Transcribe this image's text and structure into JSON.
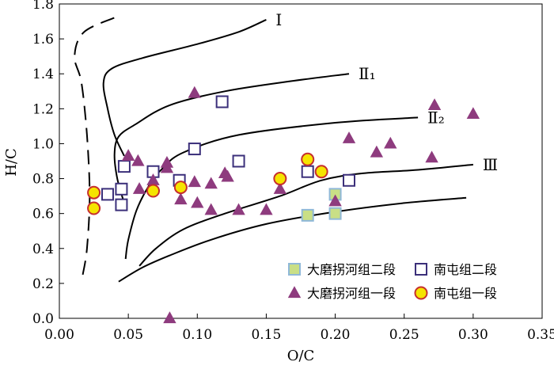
{
  "chart_data": {
    "type": "scatter",
    "xlabel": "O/C",
    "ylabel": "H/C",
    "xlim": [
      0,
      0.35
    ],
    "ylim": [
      0,
      1.8
    ],
    "x_ticks": [
      "0.00",
      "0.05",
      "0.10",
      "0.15",
      "0.20",
      "0.25",
      "0.30",
      "0.35"
    ],
    "y_ticks": [
      "0.0",
      "0.2",
      "0.4",
      "0.6",
      "0.8",
      "1.0",
      "1.2",
      "1.4",
      "1.6",
      "1.8"
    ],
    "x_tick_values": [
      0,
      0.05,
      0.1,
      0.15,
      0.2,
      0.25,
      0.3,
      0.35
    ],
    "y_tick_values": [
      0,
      0.2,
      0.4,
      0.6,
      0.8,
      1.0,
      1.2,
      1.4,
      1.6,
      1.8
    ],
    "grid": false,
    "legend_position": "bottom-right",
    "curves": [
      {
        "label": "Ⅰ",
        "points": [
          [
            0.047,
            0.93
          ],
          [
            0.04,
            1.05
          ],
          [
            0.035,
            1.2
          ],
          [
            0.032,
            1.35
          ],
          [
            0.038,
            1.43
          ],
          [
            0.06,
            1.49
          ],
          [
            0.1,
            1.57
          ],
          [
            0.13,
            1.64
          ],
          [
            0.15,
            1.71
          ]
        ]
      },
      {
        "label": "Ⅱ₁",
        "points": [
          [
            0.047,
            0.66
          ],
          [
            0.042,
            0.8
          ],
          [
            0.04,
            0.94
          ],
          [
            0.043,
            1.04
          ],
          [
            0.055,
            1.11
          ],
          [
            0.08,
            1.22
          ],
          [
            0.12,
            1.3
          ],
          [
            0.17,
            1.36
          ],
          [
            0.21,
            1.4
          ]
        ]
      },
      {
        "label": "Ⅱ₂",
        "points": [
          [
            0.048,
            0.34
          ],
          [
            0.05,
            0.45
          ],
          [
            0.056,
            0.62
          ],
          [
            0.065,
            0.76
          ],
          [
            0.075,
            0.86
          ],
          [
            0.09,
            0.95
          ],
          [
            0.13,
            1.05
          ],
          [
            0.2,
            1.12
          ],
          [
            0.26,
            1.15
          ]
        ]
      },
      {
        "label": "Ⅲ",
        "points": [
          [
            0.058,
            0.3
          ],
          [
            0.07,
            0.4
          ],
          [
            0.09,
            0.51
          ],
          [
            0.12,
            0.6
          ],
          [
            0.16,
            0.7
          ],
          [
            0.19,
            0.79
          ],
          [
            0.22,
            0.83
          ],
          [
            0.26,
            0.85
          ],
          [
            0.3,
            0.88
          ]
        ]
      },
      {
        "label": "",
        "points": [
          [
            0.043,
            0.21
          ],
          [
            0.06,
            0.29
          ],
          [
            0.08,
            0.36
          ],
          [
            0.11,
            0.45
          ],
          [
            0.15,
            0.54
          ],
          [
            0.2,
            0.61
          ],
          [
            0.25,
            0.66
          ],
          [
            0.295,
            0.69
          ]
        ]
      }
    ],
    "dashed_curve": [
      [
        0.017,
        0.25
      ],
      [
        0.02,
        0.4
      ],
      [
        0.022,
        0.7
      ],
      [
        0.02,
        1.05
      ],
      [
        0.016,
        1.35
      ],
      [
        0.011,
        1.5
      ],
      [
        0.018,
        1.64
      ],
      [
        0.043,
        1.73
      ]
    ],
    "series": [
      {
        "name": "大磨拐河组二段",
        "marker": "square-filled",
        "color": "#c9df86",
        "edge": "#8fb8d8",
        "points": [
          [
            0.18,
            0.59
          ],
          [
            0.2,
            0.6
          ],
          [
            0.2,
            0.71
          ]
        ]
      },
      {
        "name": "南屯组二段",
        "marker": "square-open",
        "color": "#ffffff",
        "edge": "#3b2f7a",
        "points": [
          [
            0.035,
            0.71
          ],
          [
            0.045,
            0.74
          ],
          [
            0.045,
            0.65
          ],
          [
            0.047,
            0.87
          ],
          [
            0.068,
            0.84
          ],
          [
            0.087,
            0.79
          ],
          [
            0.098,
            0.97
          ],
          [
            0.118,
            1.24
          ],
          [
            0.13,
            0.9
          ],
          [
            0.18,
            0.84
          ],
          [
            0.21,
            0.79
          ]
        ]
      },
      {
        "name": "大磨拐河组一段",
        "marker": "triangle",
        "color": "#8e3b7e",
        "edge": "#8e3b7e",
        "points": [
          [
            0.05,
            0.93
          ],
          [
            0.057,
            0.9
          ],
          [
            0.058,
            0.74
          ],
          [
            0.068,
            0.79
          ],
          [
            0.078,
            0.89
          ],
          [
            0.078,
            0.86
          ],
          [
            0.088,
            0.68
          ],
          [
            0.098,
            1.29
          ],
          [
            0.098,
            0.78
          ],
          [
            0.1,
            0.66
          ],
          [
            0.11,
            0.62
          ],
          [
            0.11,
            0.77
          ],
          [
            0.12,
            0.83
          ],
          [
            0.122,
            0.81
          ],
          [
            0.13,
            0.62
          ],
          [
            0.15,
            0.62
          ],
          [
            0.16,
            0.74
          ],
          [
            0.2,
            0.67
          ],
          [
            0.21,
            1.03
          ],
          [
            0.23,
            0.95
          ],
          [
            0.24,
            1.0
          ],
          [
            0.27,
            0.92
          ],
          [
            0.272,
            1.22
          ],
          [
            0.3,
            1.17
          ],
          [
            0.08,
            0.0
          ]
        ]
      },
      {
        "name": "南屯组一段",
        "marker": "circle",
        "color": "#f5e400",
        "edge": "#c62f2f",
        "points": [
          [
            0.025,
            0.72
          ],
          [
            0.025,
            0.63
          ],
          [
            0.068,
            0.73
          ],
          [
            0.088,
            0.75
          ],
          [
            0.16,
            0.8
          ],
          [
            0.18,
            0.91
          ],
          [
            0.19,
            0.84
          ]
        ]
      }
    ]
  }
}
